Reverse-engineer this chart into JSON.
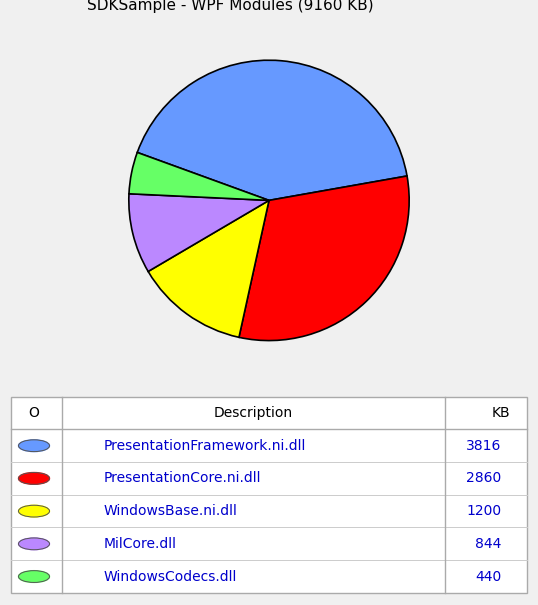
{
  "title": "SDKSample - WPF Modules (9160 KB)",
  "slices": [
    {
      "label": "PresentationFramework.ni.dll",
      "value": 3816,
      "color": "#6699FF"
    },
    {
      "label": "PresentationCore.ni.dll",
      "value": 2860,
      "color": "#FF0000"
    },
    {
      "label": "WindowsBase.ni.dll",
      "value": 1200,
      "color": "#FFFF00"
    },
    {
      "label": "MilCore.dll",
      "value": 844,
      "color": "#BB88FF"
    },
    {
      "label": "WindowsCodecs.dll",
      "value": 440,
      "color": "#66FF66"
    }
  ],
  "dot_colors": [
    "#6699FF",
    "#FF0000",
    "#FFFF00",
    "#BB88FF",
    "#66FF66"
  ],
  "table_bg": "#FFFFFF",
  "background_color": "#F0F0F0",
  "text_color": "#0000CC",
  "header_text_color": "#000000",
  "title_fontsize": 11,
  "table_fontsize": 10,
  "pie_edge_color": "#000000",
  "pie_startangle": 160,
  "col_o": 0.045,
  "col_desc": 0.18,
  "col_kb": 0.95,
  "col_sep1": 0.1,
  "col_sep2": 0.84
}
